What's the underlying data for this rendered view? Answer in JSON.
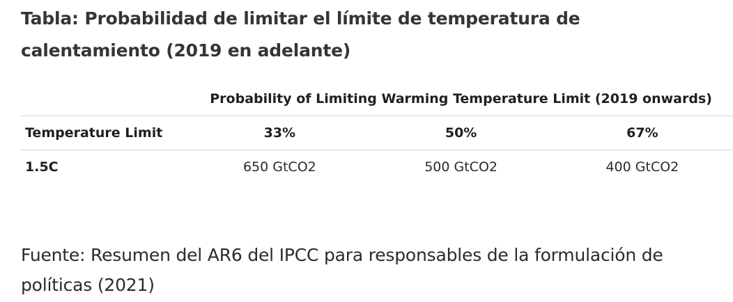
{
  "title": "Tabla: Probabilidad de limitar el límite de temperatura de calentamiento (2019 en adelante)",
  "table": {
    "group_header": "Probability of Limiting Warming Temperature Limit (2019 onwards)",
    "columns": [
      "Temperature Limit",
      "33%",
      "50%",
      "67%"
    ],
    "rows": [
      [
        "1.5C",
        "650 GtCO2",
        "500 GtCO2",
        "400 GtCO2"
      ]
    ]
  },
  "source": "Fuente: Resumen del AR6 del IPCC para responsables de la formulación de políticas (2021)"
}
